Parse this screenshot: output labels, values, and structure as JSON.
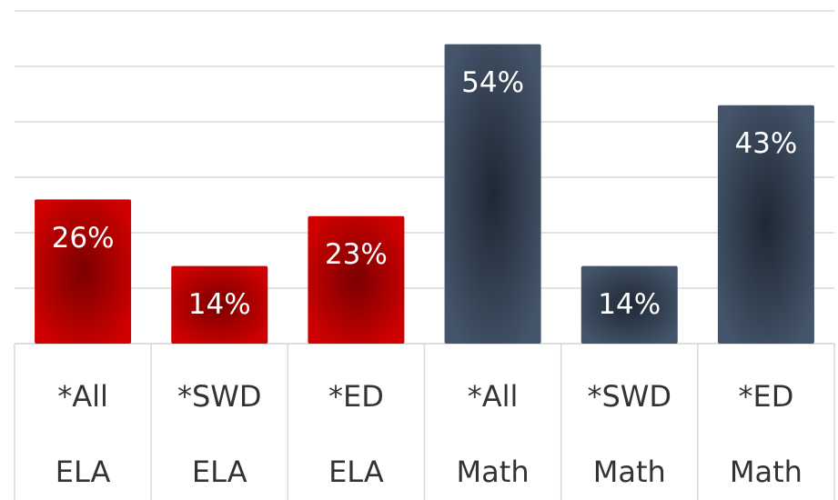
{
  "chart_data": {
    "type": "bar",
    "categories": [
      "*All ELA",
      "*SWD ELA",
      "*ED ELA",
      "*All Math",
      "*SWD Math",
      "*ED Math"
    ],
    "values": [
      26,
      14,
      23,
      54,
      14,
      43
    ],
    "value_labels": [
      "26%",
      "14%",
      "23%",
      "54%",
      "14%",
      "43%"
    ],
    "colors": [
      "#c00000",
      "#c00000",
      "#c00000",
      "#44546a",
      "#44546a",
      "#44546a"
    ],
    "ylim": [
      0,
      60
    ],
    "yticks": [
      0,
      10,
      20,
      30,
      40,
      50,
      60
    ],
    "grid": true
  }
}
